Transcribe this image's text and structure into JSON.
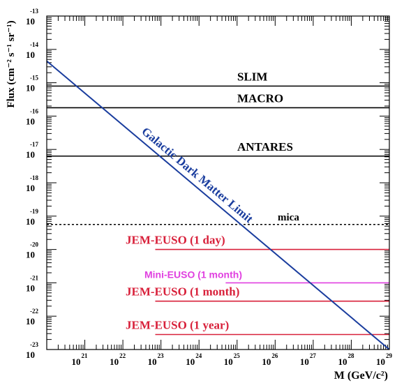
{
  "chart_data": {
    "type": "line",
    "ylabel": "Flux (cm⁻² s⁻¹ sr⁻¹)",
    "xlabel": "M (GeV/c²)",
    "x_scale": "log",
    "y_scale": "log",
    "xlim_exp": [
      20,
      29
    ],
    "ylim_exp": [
      -23,
      -13
    ],
    "x_ticks": [
      {
        "base": "10",
        "exp": "21",
        "value": 21
      },
      {
        "base": "10",
        "exp": "22",
        "value": 22
      },
      {
        "base": "10",
        "exp": "23",
        "value": 23
      },
      {
        "base": "10",
        "exp": "24",
        "value": 24
      },
      {
        "base": "10",
        "exp": "25",
        "value": 25
      },
      {
        "base": "10",
        "exp": "26",
        "value": 26
      },
      {
        "base": "10",
        "exp": "27",
        "value": 27
      },
      {
        "base": "10",
        "exp": "28",
        "value": 28
      },
      {
        "base": "10",
        "exp": "29",
        "value": 29
      }
    ],
    "y_ticks": [
      {
        "base": "10",
        "exp": "-13",
        "value": -13
      },
      {
        "base": "10",
        "exp": "-14",
        "value": -14
      },
      {
        "base": "10",
        "exp": "-15",
        "value": -15
      },
      {
        "base": "10",
        "exp": "-16",
        "value": -16
      },
      {
        "base": "10",
        "exp": "-17",
        "value": -17
      },
      {
        "base": "10",
        "exp": "-18",
        "value": -18
      },
      {
        "base": "10",
        "exp": "-19",
        "value": -19
      },
      {
        "base": "10",
        "exp": "-20",
        "value": -20
      },
      {
        "base": "10",
        "exp": "-21",
        "value": -21
      },
      {
        "base": "10",
        "exp": "-22",
        "value": -22
      },
      {
        "base": "10",
        "exp": "-23",
        "value": -23
      }
    ],
    "limits": [
      {
        "name": "SLIM",
        "log_flux": -15.1,
        "log_m_start": 20.0,
        "log_m_end": 29.0,
        "color": "#000000",
        "dashed": false,
        "font": "serif"
      },
      {
        "name": "MACRO",
        "log_flux": -15.75,
        "log_m_start": 20.0,
        "log_m_end": 29.0,
        "color": "#000000",
        "dashed": false,
        "font": "serif"
      },
      {
        "name": "ANTARES",
        "log_flux": -17.2,
        "log_m_start": 20.0,
        "log_m_end": 29.0,
        "color": "#000000",
        "dashed": false,
        "font": "serif"
      },
      {
        "name": "mica",
        "log_flux": -19.25,
        "log_m_start": 20.0,
        "log_m_end": 29.0,
        "color": "#000000",
        "dashed": true,
        "font": "serif"
      },
      {
        "name": "JEM-EUSO (1 day)",
        "log_flux": -20.0,
        "log_m_start": 22.85,
        "log_m_end": 29.0,
        "color": "#d8203a",
        "dashed": false,
        "font": "serif"
      },
      {
        "name": "Mini-EUSO (1 month)",
        "log_flux": -21.0,
        "log_m_start": 24.7,
        "log_m_end": 29.0,
        "color": "#e040e0",
        "dashed": false,
        "font": "sans"
      },
      {
        "name": "JEM-EUSO (1 month)",
        "log_flux": -21.55,
        "log_m_start": 22.85,
        "log_m_end": 29.0,
        "color": "#d8203a",
        "dashed": false,
        "font": "serif"
      },
      {
        "name": "JEM-EUSO (1 year)",
        "log_flux": -22.55,
        "log_m_start": 22.85,
        "log_m_end": 29.0,
        "color": "#d8203a",
        "dashed": false,
        "font": "serif"
      }
    ],
    "dark_matter_limit": {
      "name": "Galactic Dark Matter Limit",
      "color": "#1a3d9e",
      "points": [
        {
          "log_m": 20.0,
          "log_flux": -14.35
        },
        {
          "log_m": 29.0,
          "log_flux": -23.0
        }
      ]
    }
  }
}
